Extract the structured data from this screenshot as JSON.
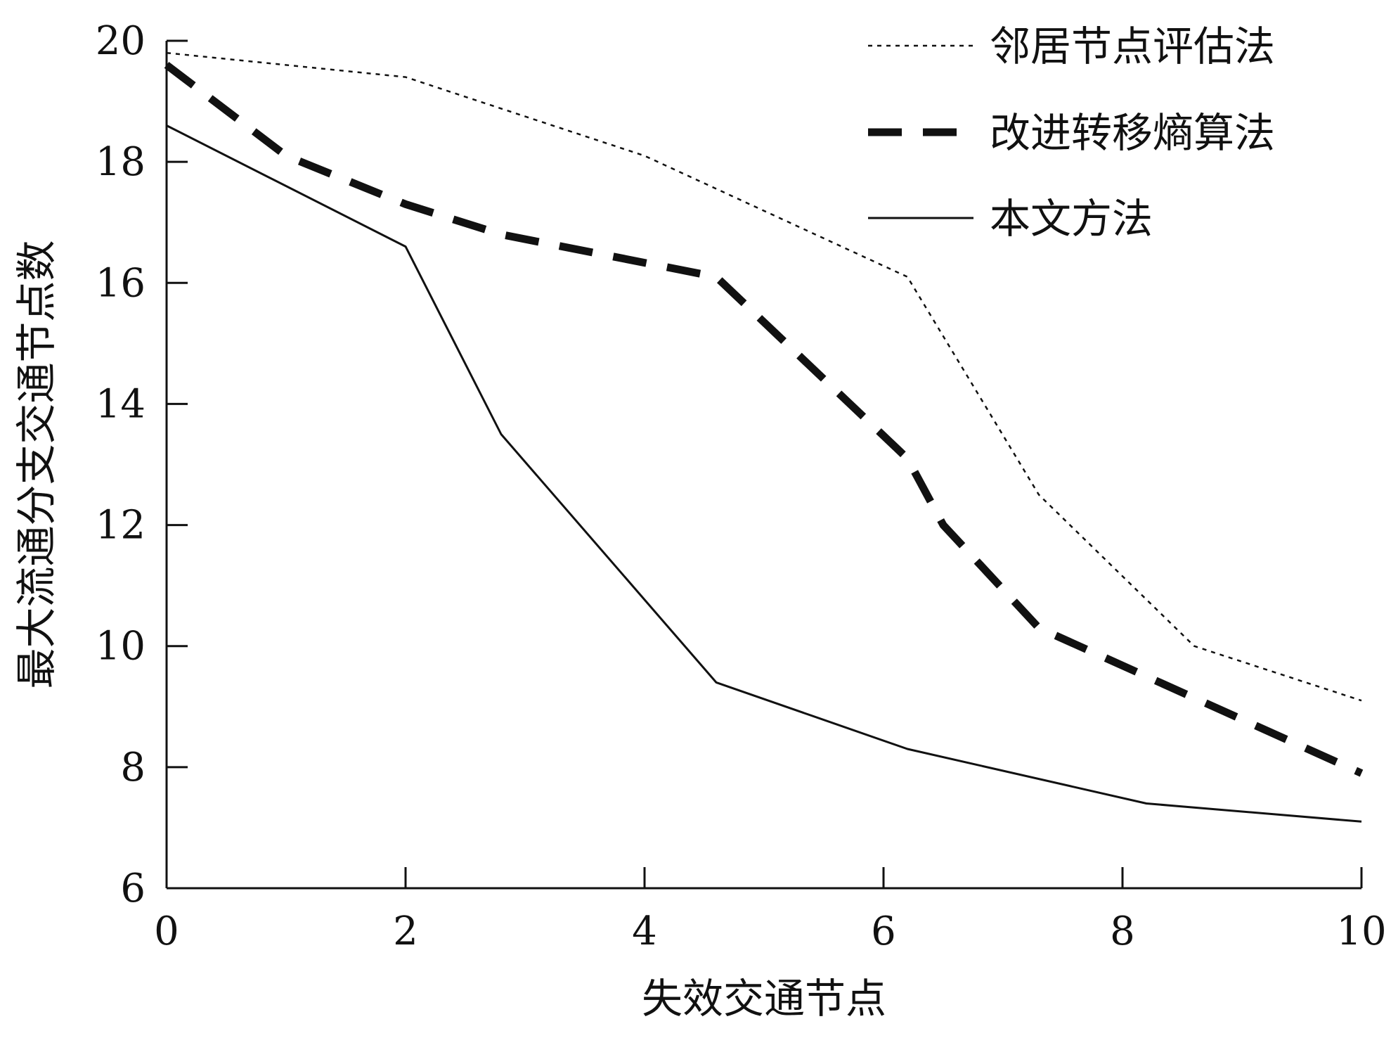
{
  "chart_data": {
    "type": "line",
    "xlabel": "失效交通节点",
    "ylabel": "最大流通分支交通节点数",
    "xlim": [
      0,
      10
    ],
    "ylim": [
      6,
      20
    ],
    "xticks": [
      0,
      2,
      4,
      6,
      8,
      10
    ],
    "yticks": [
      6,
      8,
      10,
      12,
      14,
      16,
      18,
      20
    ],
    "grid": false,
    "legend_position": "top-right",
    "series": [
      {
        "name": "邻居节点评估法",
        "style": "dotted",
        "color": "#111111",
        "points": [
          [
            0,
            19.8
          ],
          [
            2,
            19.4
          ],
          [
            4,
            18.1
          ],
          [
            6.2,
            16.1
          ],
          [
            7.3,
            12.5
          ],
          [
            8.6,
            10.0
          ],
          [
            10,
            9.1
          ]
        ]
      },
      {
        "name": "改进转移熵算法",
        "style": "dashed",
        "color": "#111111",
        "points": [
          [
            0,
            19.6
          ],
          [
            1,
            18.1
          ],
          [
            2,
            17.3
          ],
          [
            2.8,
            16.8
          ],
          [
            4.6,
            16.1
          ],
          [
            6.2,
            13.1
          ],
          [
            6.5,
            12.0
          ],
          [
            7.3,
            10.3
          ],
          [
            8.2,
            9.5
          ],
          [
            10,
            7.9
          ]
        ]
      },
      {
        "name": "本文方法",
        "style": "solid",
        "color": "#111111",
        "points": [
          [
            0,
            18.6
          ],
          [
            2,
            16.6
          ],
          [
            2.8,
            13.5
          ],
          [
            4.6,
            9.4
          ],
          [
            6.2,
            8.3
          ],
          [
            8.2,
            7.4
          ],
          [
            10,
            7.1
          ]
        ]
      }
    ]
  }
}
